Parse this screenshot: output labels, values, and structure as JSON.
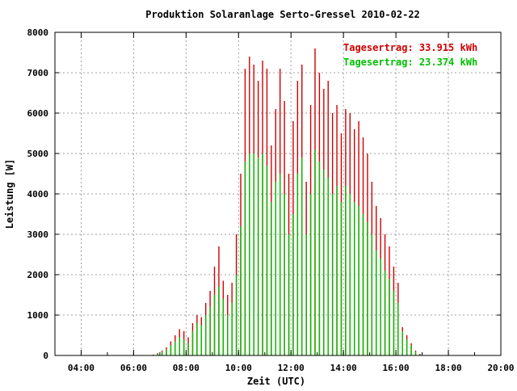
{
  "chart_data": {
    "type": "bar",
    "title": "Produktion Solaranlage Serto-Gressel 2010-02-22",
    "xlabel": "Zeit (UTC)",
    "ylabel": "Leistung [W]",
    "xlim": [
      "03:00",
      "20:00"
    ],
    "ylim": [
      0,
      8000
    ],
    "x_ticks": [
      "04:00",
      "06:00",
      "08:00",
      "10:00",
      "12:00",
      "14:00",
      "16:00",
      "18:00",
      "20:00"
    ],
    "y_ticks": [
      "0",
      "1000",
      "2000",
      "3000",
      "4000",
      "5000",
      "6000",
      "7000",
      "8000"
    ],
    "grid": true,
    "legend_placement": "top-right",
    "colors": {
      "series1": "#d00000",
      "series2": "#00c000",
      "axis": "#000000",
      "grid": "#a0a0a0"
    },
    "annotations": [
      {
        "text": "Tagesertrag: 33.915 kWh",
        "color": "#d00000"
      },
      {
        "text": "Tagesertrag: 23.374 kWh",
        "color": "#00c000"
      }
    ],
    "x": [
      "06:45",
      "06:55",
      "07:05",
      "07:15",
      "07:25",
      "07:35",
      "07:45",
      "07:55",
      "08:05",
      "08:15",
      "08:25",
      "08:35",
      "08:45",
      "08:55",
      "09:05",
      "09:15",
      "09:25",
      "09:35",
      "09:45",
      "09:55",
      "10:05",
      "10:15",
      "10:25",
      "10:35",
      "10:45",
      "10:55",
      "11:05",
      "11:15",
      "11:25",
      "11:35",
      "11:45",
      "11:55",
      "12:05",
      "12:15",
      "12:25",
      "12:35",
      "12:45",
      "12:55",
      "13:05",
      "13:15",
      "13:25",
      "13:35",
      "13:45",
      "13:55",
      "14:05",
      "14:15",
      "14:25",
      "14:35",
      "14:45",
      "14:55",
      "15:05",
      "15:15",
      "15:25",
      "15:35",
      "15:45",
      "15:55",
      "16:05",
      "16:15",
      "16:25",
      "16:35",
      "16:45",
      "16:55"
    ],
    "series": [
      {
        "values": [
          20,
          60,
          120,
          200,
          350,
          500,
          650,
          600,
          450,
          800,
          1000,
          950,
          1300,
          1600,
          2200,
          2700,
          1850,
          1500,
          1800,
          3000,
          4500,
          7100,
          7400,
          7200,
          6800,
          7300,
          7100,
          5200,
          6100,
          7100,
          6300,
          4500,
          5800,
          6800,
          7200,
          4300,
          6200,
          7600,
          7000,
          6600,
          6800,
          6000,
          6200,
          5500,
          6100,
          6000,
          5600,
          5800,
          5400,
          5000,
          4300,
          3700,
          3400,
          3000,
          2700,
          2200,
          1800,
          700,
          500,
          300,
          120,
          40
        ]
      },
      {
        "values": [
          10,
          40,
          80,
          150,
          250,
          350,
          450,
          400,
          300,
          600,
          800,
          750,
          1000,
          1200,
          1500,
          1700,
          1400,
          1000,
          1300,
          2000,
          3200,
          4800,
          5000,
          5000,
          4900,
          5000,
          4700,
          3800,
          4300,
          4500,
          4000,
          3000,
          3500,
          4500,
          4900,
          3000,
          4000,
          5100,
          4800,
          4600,
          4400,
          4000,
          4200,
          3800,
          4200,
          4000,
          3800,
          3700,
          3500,
          3300,
          3000,
          2600,
          2400,
          2100,
          1900,
          1600,
          1300,
          600,
          400,
          250,
          100,
          30
        ]
      }
    ]
  }
}
